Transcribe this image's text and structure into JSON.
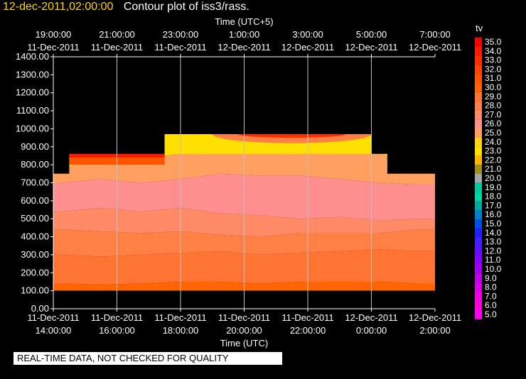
{
  "header": {
    "timestamp": "12-dec-2011,02:00:00",
    "title": "Contour plot of iss3/rass."
  },
  "notice": "REAL-TIME DATA, NOT CHECKED FOR QUALITY",
  "colors": {
    "background": "#000000",
    "title_timestamp": "#ffd400",
    "gridline": "#bfbfbf"
  },
  "chart_data": {
    "type": "heatmap",
    "variable": "tv",
    "top_axis": {
      "label": "Time (UTC+5)",
      "ticks": [
        {
          "time": "19:00:00",
          "date": "11-Dec-2011"
        },
        {
          "time": "21:00:00",
          "date": "11-Dec-2011"
        },
        {
          "time": "23:00:00",
          "date": "11-Dec-2011"
        },
        {
          "time": "1:00:00",
          "date": "12-Dec-2011"
        },
        {
          "time": "3:00:00",
          "date": "12-Dec-2011"
        },
        {
          "time": "5:00:00",
          "date": "12-Dec-2011"
        },
        {
          "time": "7:00:00",
          "date": "12-Dec-2011"
        }
      ]
    },
    "bottom_axis": {
      "label": "Time (UTC)",
      "ticks": [
        {
          "date": "11-Dec-2011",
          "time": "14:00:00"
        },
        {
          "date": "11-Dec-2011",
          "time": "16:00:00"
        },
        {
          "date": "11-Dec-2011",
          "time": "18:00:00"
        },
        {
          "date": "11-Dec-2011",
          "time": "20:00:00"
        },
        {
          "date": "11-Dec-2011",
          "time": "22:00:00"
        },
        {
          "date": "12-Dec-2011",
          "time": "0:00:00"
        },
        {
          "date": "12-Dec-2011",
          "time": "2:00:00"
        }
      ]
    },
    "y_axis": {
      "ylim": [
        0,
        1400
      ],
      "ticks": [
        "0.00",
        "100.00",
        "200.00",
        "300.00",
        "400.00",
        "500.00",
        "600.00",
        "700.00",
        "800.00",
        "900.00",
        "1000.00",
        "1100.00",
        "1200.00",
        "1300.00",
        "1400.00"
      ]
    },
    "x_grid_hours": [
      16,
      18,
      20,
      22,
      24
    ],
    "colorbar": {
      "label": "tv",
      "levels": [
        "35.0",
        "34.0",
        "33.0",
        "32.0",
        "31.0",
        "30.0",
        "29.0",
        "28.0",
        "27.0",
        "26.0",
        "25.0",
        "24.0",
        "23.0",
        "22.0",
        "21.0",
        "20.0",
        "19.0",
        "18.0",
        "17.0",
        "16.0",
        "15.0",
        "14.0",
        "13.0",
        "12.0",
        "11.0",
        "10.0",
        "9.0",
        "8.0",
        "7.0",
        "6.0",
        "5.0"
      ],
      "colors": [
        "#ff0000",
        "#ff1a00",
        "#ff2e00",
        "#ff4300",
        "#ff5500",
        "#ff6400",
        "#ff7433",
        "#ff8044",
        "#ff8a66",
        "#ff8f8f",
        "#ffa060",
        "#ffd21a",
        "#ffe000",
        "#ffb400",
        "#a0901a",
        "#a6a6a6",
        "#00c8a0",
        "#00d6a0",
        "#00a89a",
        "#0080c8",
        "#0050e0",
        "#2020ff",
        "#4020ff",
        "#6010ff",
        "#8a00ff",
        "#a000f0",
        "#c000e8",
        "#d800e6",
        "#f000e0",
        "#ff00d8",
        "#ff00f0"
      ]
    },
    "data_hours": [
      14.25,
      14.75,
      15.25,
      15.75,
      16.25,
      16.75,
      17.25,
      17.75,
      18.25,
      18.75,
      19.25,
      19.75,
      20.25,
      20.75,
      21.25,
      21.75,
      22.25,
      22.75,
      23.25,
      23.75,
      24.25,
      24.75,
      25.25,
      25.75
    ],
    "data_top_height": [
      750,
      860,
      860,
      860,
      860,
      860,
      860,
      970,
      970,
      970,
      970,
      970,
      970,
      970,
      970,
      970,
      970,
      970,
      970,
      970,
      860,
      750,
      750,
      750
    ],
    "profiles": {
      "x_hours": [
        14.25,
        15.5,
        16.75,
        18.0,
        19.25,
        20.5,
        21.75,
        23.0,
        24.25,
        25.5,
        26.0
      ],
      "boundaries_m": [
        {
          "level": "29.0",
          "values": [
            140,
            135,
            140,
            150,
            150,
            140,
            150,
            150,
            150,
            140,
            140
          ]
        },
        {
          "level": "28.0",
          "values": [
            300,
            290,
            300,
            310,
            320,
            300,
            310,
            320,
            330,
            320,
            320
          ]
        },
        {
          "level": "27.0",
          "values": [
            440,
            430,
            420,
            430,
            410,
            400,
            420,
            420,
            420,
            440,
            440
          ]
        },
        {
          "level": "26.0",
          "values": [
            540,
            560,
            540,
            560,
            530,
            520,
            500,
            510,
            490,
            500,
            500
          ]
        },
        {
          "level": "25.0",
          "values": [
            700,
            720,
            700,
            720,
            750,
            740,
            740,
            720,
            700,
            690,
            690
          ]
        },
        {
          "level": "24.0",
          "values": [
            780,
            830,
            830,
            860,
            860,
            860,
            860,
            860,
            860,
            800,
            800
          ]
        }
      ]
    }
  }
}
